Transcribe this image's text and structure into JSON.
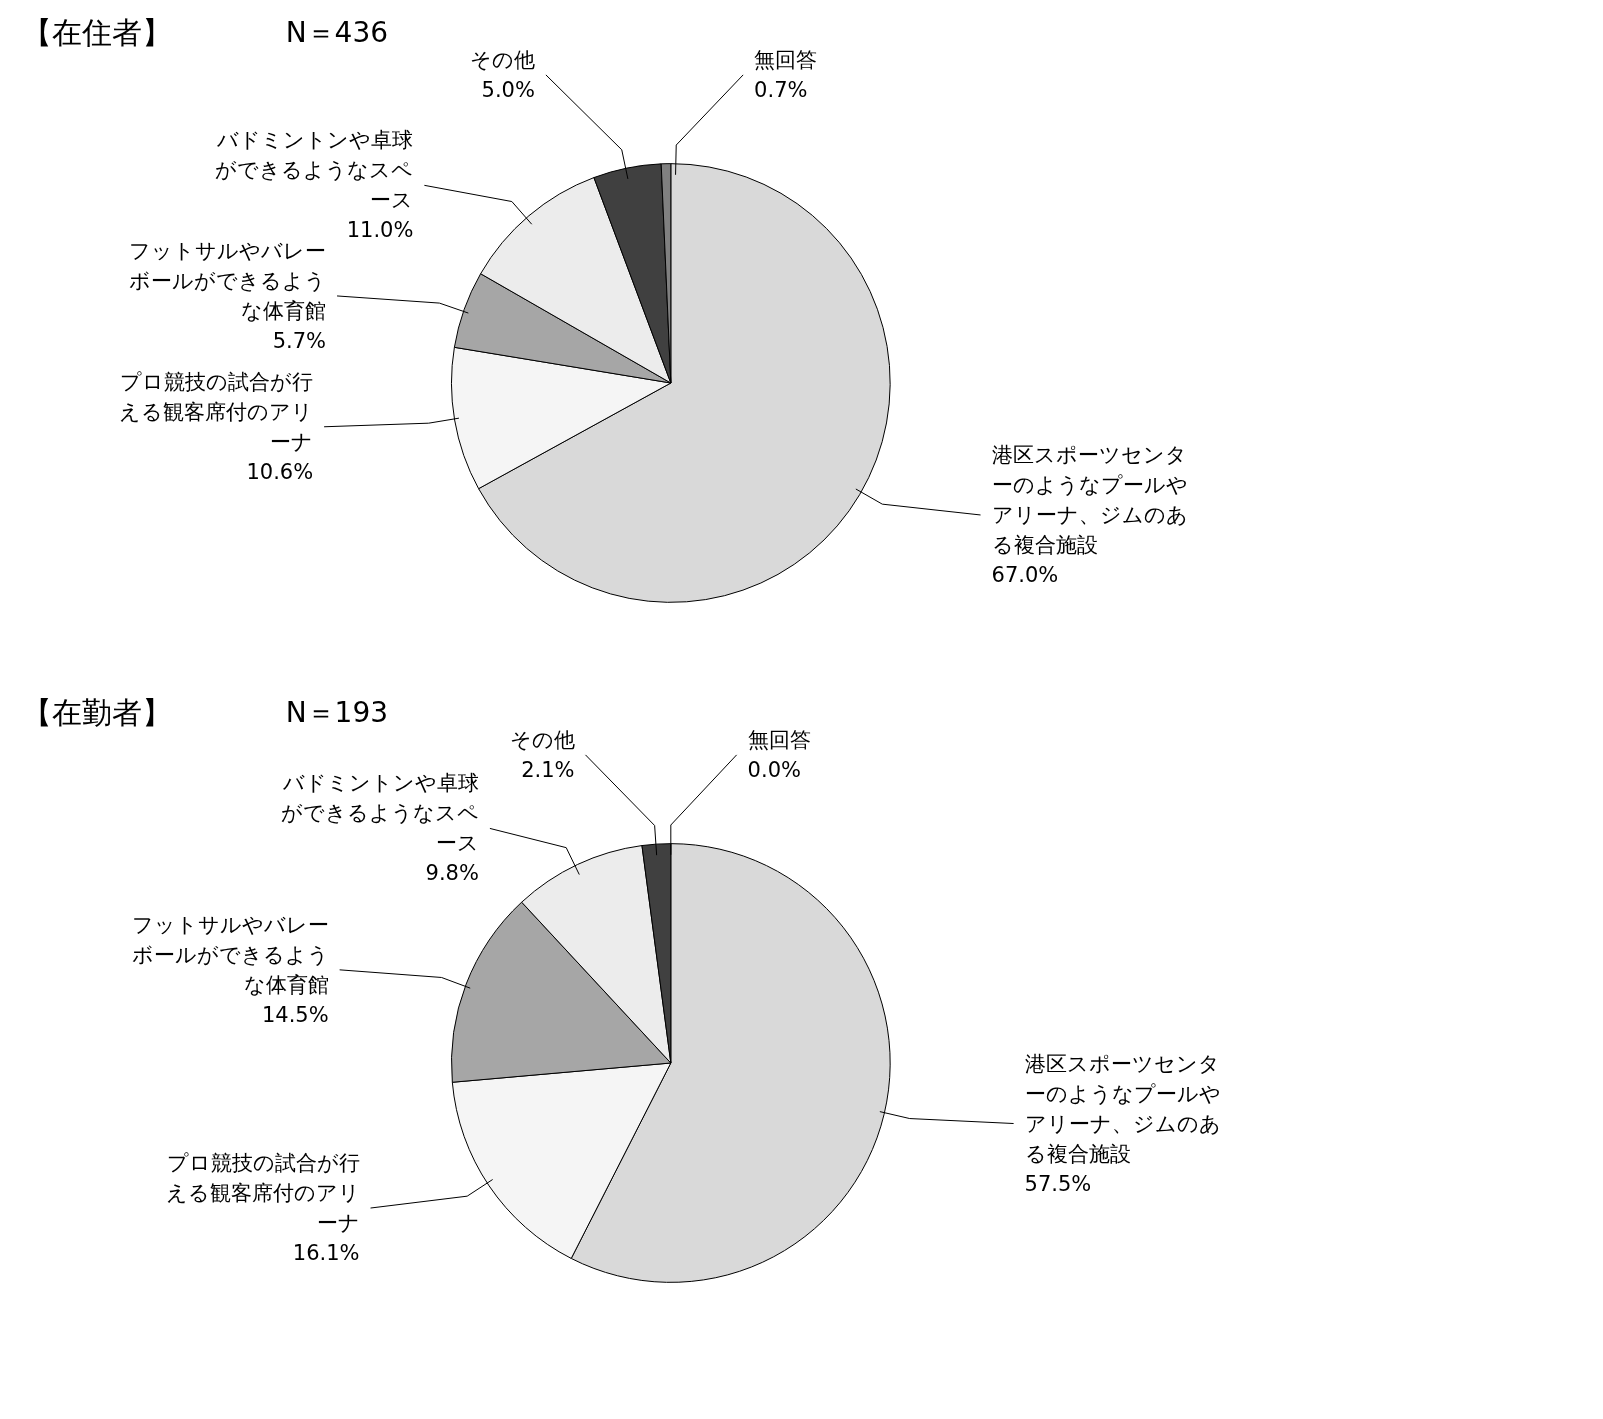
{
  "chart_data": [
    {
      "type": "pie",
      "title": "【在住者】",
      "subtitle": "N＝436",
      "categories": [
        "港区スポーツセンターのようなプールやアリーナ、ジムのある複合施設",
        "プロ競技の試合が行える観客席付のアリーナ",
        "フットサルやバレーボールができるような体育館",
        "バドミントンや卓球ができるようなスペース",
        "その他",
        "無回答"
      ],
      "values": [
        67.0,
        10.6,
        5.7,
        11.0,
        5.0,
        0.7
      ],
      "value_labels": [
        "67.0%",
        "10.6%",
        "5.7%",
        "11.0%",
        "5.0%",
        "0.7%"
      ],
      "colors": [
        "#d9d9d9",
        "#f5f5f5",
        "#a6a6a6",
        "#ececec",
        "#404040",
        "#808080"
      ]
    },
    {
      "type": "pie",
      "title": "【在勤者】",
      "subtitle": "N＝193",
      "categories": [
        "港区スポーツセンターのようなプールやアリーナ、ジムのある複合施設",
        "プロ競技の試合が行える観客席付のアリーナ",
        "フットサルやバレーボールができるような体育館",
        "バドミントンや卓球ができるようなスペース",
        "その他",
        "無回答"
      ],
      "values": [
        57.5,
        16.1,
        14.5,
        9.8,
        2.1,
        0.0
      ],
      "value_labels": [
        "57.5%",
        "16.1%",
        "14.5%",
        "9.8%",
        "2.1%",
        "0.0%"
      ],
      "colors": [
        "#d9d9d9",
        "#f5f5f5",
        "#a6a6a6",
        "#ececec",
        "#404040",
        "#808080"
      ]
    }
  ]
}
